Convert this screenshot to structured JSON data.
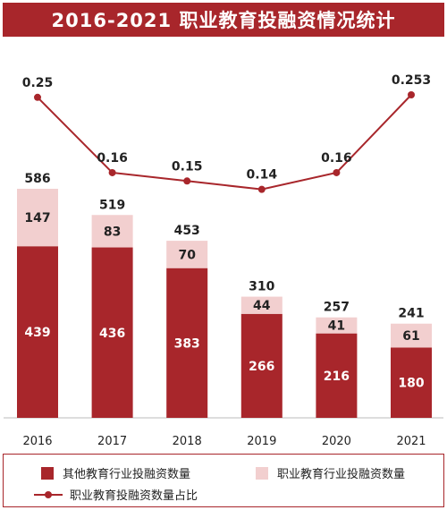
{
  "colors": {
    "primary": "#a8262b",
    "light": "#f2cfcf",
    "text": "#222222",
    "value_on_dark": "#ffffff"
  },
  "chart_data": {
    "type": "bar",
    "stacked": true,
    "title": "2016-2021 职业教育投融资情况统计",
    "categories": [
      "2016",
      "2017",
      "2018",
      "2019",
      "2020",
      "2021"
    ],
    "series": [
      {
        "name": "其他教育行业投融资数量",
        "values": [
          439,
          436,
          383,
          266,
          216,
          180
        ]
      },
      {
        "name": "职业教育行业投融资数量",
        "values": [
          147,
          83,
          70,
          44,
          41,
          61
        ]
      }
    ],
    "totals": [
      586,
      519,
      453,
      310,
      257,
      241
    ],
    "line_series": {
      "name": "职业教育投融资数量占比",
      "values": [
        0.25,
        0.16,
        0.15,
        0.14,
        0.16,
        0.253
      ]
    },
    "legend_position": "bottom",
    "grid": false
  }
}
